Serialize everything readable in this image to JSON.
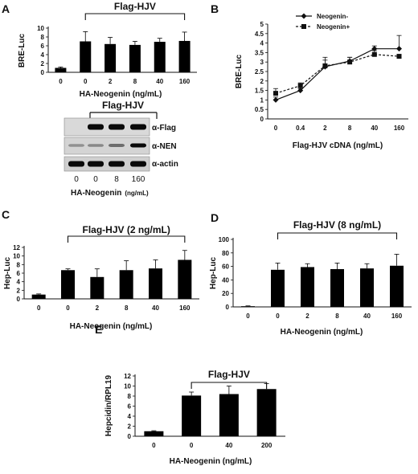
{
  "panels": {
    "a": "A",
    "b": "B",
    "c": "C",
    "d": "D",
    "e": "E"
  },
  "blot": {
    "bracket_label": "Flag-HJV",
    "rows": [
      "α-Flag",
      "α-NEN",
      "α-actin"
    ],
    "cols": [
      "0",
      "0",
      "8",
      "160"
    ],
    "xlabel_main": "HA-Neogenin",
    "xlabel_unit": "(ng/mL)",
    "band_intensity": {
      "flag": [
        0.0,
        1.0,
        1.0,
        1.0
      ],
      "nen": [
        0.25,
        0.3,
        0.45,
        1.0
      ],
      "actin": [
        1.0,
        1.0,
        1.0,
        1.0
      ]
    }
  },
  "chart_data": [
    {
      "id": "A",
      "type": "bar",
      "title": "Flag-HJV",
      "xlabel": "HA-Neogenin  (ng/mL)",
      "ylabel": "BRE-Luc",
      "categories": [
        "0",
        "0",
        "2",
        "8",
        "40",
        "160"
      ],
      "values": [
        1.0,
        7.0,
        6.4,
        6.2,
        6.9,
        7.1
      ],
      "errors": [
        0.2,
        2.2,
        1.5,
        0.8,
        0.8,
        2.0
      ],
      "ylim": [
        0,
        10
      ],
      "yticks": [
        0,
        2,
        4,
        6,
        8,
        10
      ],
      "bracket": {
        "label": "Flag-HJV",
        "from": 1,
        "to": 5
      }
    },
    {
      "id": "B",
      "type": "line",
      "xlabel": "Flag-HJV cDNA (ng/mL)",
      "ylabel": "BRE-Luc",
      "categories": [
        "0",
        "0.4",
        "2",
        "8",
        "40",
        "160"
      ],
      "ylim": [
        0,
        5
      ],
      "yticks": [
        0,
        0.5,
        1,
        1.5,
        2,
        2.5,
        3,
        3.5,
        4,
        4.5,
        5
      ],
      "legend_position": "top-right",
      "series": [
        {
          "name": "Neogenin-",
          "values": [
            1.0,
            1.5,
            2.75,
            3.05,
            3.7,
            3.7
          ],
          "errors": [
            0.15,
            0.1,
            0.5,
            0.2,
            0.15,
            0.7
          ],
          "color": "#111111",
          "dashed": false,
          "marker": "diamond"
        },
        {
          "name": "Neogenin+",
          "values": [
            1.35,
            1.75,
            2.8,
            3.0,
            3.4,
            3.3
          ],
          "errors": [
            0.25,
            0.15,
            0.3,
            0.25,
            0.2,
            0.1
          ],
          "color": "#111111",
          "dashed": true,
          "marker": "square"
        }
      ]
    },
    {
      "id": "C",
      "type": "bar",
      "title": "Flag-HJV (2 ng/mL)",
      "xlabel": "HA-Neogenin  (ng/mL)",
      "ylabel": "Hep-Luc",
      "categories": [
        "0",
        "0",
        "2",
        "8",
        "40",
        "160"
      ],
      "values": [
        1.0,
        6.7,
        5.1,
        6.7,
        7.1,
        9.1
      ],
      "errors": [
        0.15,
        0.3,
        1.9,
        2.2,
        2.0,
        2.2
      ],
      "ylim": [
        0,
        12
      ],
      "yticks": [
        0,
        2,
        4,
        6,
        8,
        10,
        12
      ],
      "bracket": {
        "label": "Flag-HJV (2 ng/mL)",
        "from": 1,
        "to": 5
      }
    },
    {
      "id": "D",
      "type": "bar",
      "title": "Flag-HJV (8 ng/mL)",
      "xlabel": "HA-Neogenin  (ng/mL)",
      "ylabel": "Hep-Luc",
      "categories": [
        "0",
        "0",
        "2",
        "8",
        "40",
        "160"
      ],
      "values": [
        1,
        55,
        59,
        56,
        57,
        61
      ],
      "errors": [
        0.5,
        10,
        5,
        9,
        7,
        17
      ],
      "ylim": [
        0,
        100
      ],
      "yticks": [
        0,
        20,
        40,
        60,
        80,
        100
      ],
      "bracket": {
        "label": "Flag-HJV (8 ng/mL)",
        "from": 1,
        "to": 5
      }
    },
    {
      "id": "E",
      "type": "bar",
      "title": "Flag-HJV",
      "xlabel": "HA-Neogenin  (ng/mL)",
      "ylabel": "Hepcidin/RPL19",
      "categories": [
        "0",
        "0",
        "40",
        "200"
      ],
      "values": [
        1.0,
        8.1,
        8.4,
        9.4
      ],
      "errors": [
        0.1,
        0.7,
        1.6,
        1.1
      ],
      "ylim": [
        0,
        12
      ],
      "yticks": [
        0,
        2,
        4,
        6,
        8,
        10,
        12
      ],
      "bracket": {
        "label": "Flag-HJV",
        "from": 1,
        "to": 3
      }
    }
  ]
}
